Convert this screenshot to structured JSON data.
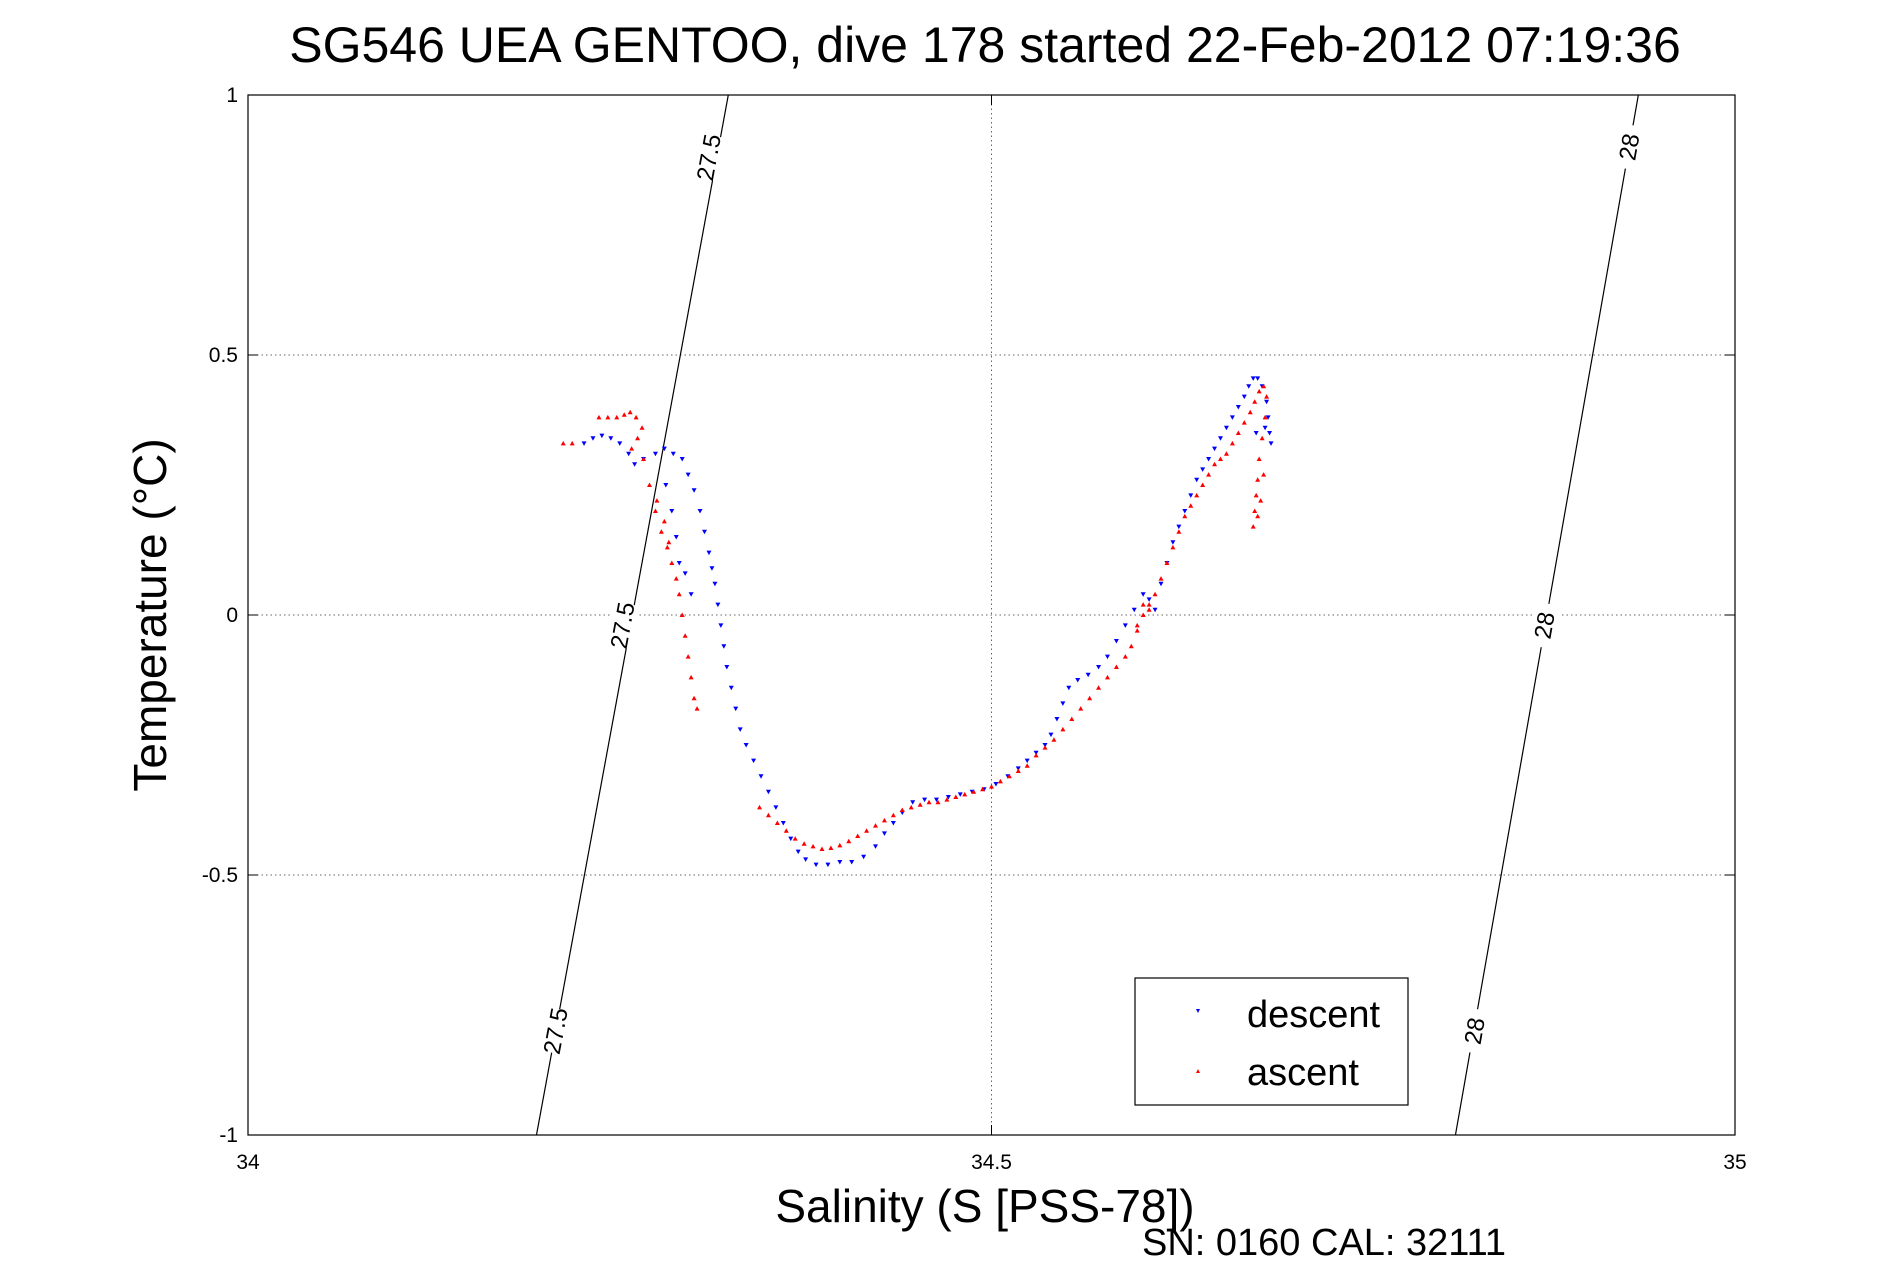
{
  "chart_data": {
    "type": "scatter",
    "title": "SG546 UEA GENTOO, dive 178 started 22-Feb-2012 07:19:36",
    "xlabel": "Salinity (S [PSS-78])",
    "ylabel": "Temperature (°C)",
    "xlim": [
      34,
      35
    ],
    "ylim": [
      -1,
      1
    ],
    "xticks": [
      34,
      34.5,
      35
    ],
    "yticks": [
      -1,
      -0.5,
      0,
      0.5,
      1
    ],
    "x_tick_labels": [
      "34",
      "34.5",
      "35"
    ],
    "y_tick_labels": [
      "-1",
      "-0.5",
      "0",
      "0.5",
      "1"
    ],
    "grid": true,
    "legend_position": "bottom-right",
    "density_contours": [
      {
        "label": "27.5",
        "points": [
          [
            34.194,
            -1
          ],
          [
            34.323,
            1
          ]
        ],
        "label_positions": [
          [
            34.207,
            -0.8
          ],
          [
            34.252,
            -0.02
          ],
          [
            34.31,
            0.88
          ]
        ]
      },
      {
        "label": "28",
        "points": [
          [
            34.812,
            -1
          ],
          [
            34.935,
            1
          ]
        ],
        "label_positions": [
          [
            34.825,
            -0.8
          ],
          [
            34.872,
            -0.02
          ],
          [
            34.929,
            0.9
          ]
        ]
      }
    ],
    "series": [
      {
        "name": "descent",
        "color": "#0000ff",
        "marker": "triangle-down",
        "points": [
          [
            34.226,
            0.33
          ],
          [
            34.232,
            0.34
          ],
          [
            34.238,
            0.345
          ],
          [
            34.244,
            0.34
          ],
          [
            34.25,
            0.33
          ],
          [
            34.256,
            0.31
          ],
          [
            34.26,
            0.29
          ],
          [
            34.266,
            0.3
          ],
          [
            34.274,
            0.31
          ],
          [
            34.28,
            0.32
          ],
          [
            34.286,
            0.31
          ],
          [
            34.292,
            0.3
          ],
          [
            34.296,
            0.27
          ],
          [
            34.3,
            0.24
          ],
          [
            34.304,
            0.2
          ],
          [
            34.307,
            0.16
          ],
          [
            34.31,
            0.12
          ],
          [
            34.312,
            0.09
          ],
          [
            34.314,
            0.06
          ],
          [
            34.316,
            0.02
          ],
          [
            34.318,
            -0.02
          ],
          [
            34.32,
            -0.06
          ],
          [
            34.322,
            -0.1
          ],
          [
            34.325,
            -0.14
          ],
          [
            34.328,
            -0.18
          ],
          [
            34.331,
            -0.22
          ],
          [
            34.335,
            -0.25
          ],
          [
            34.34,
            -0.28
          ],
          [
            34.345,
            -0.31
          ],
          [
            34.35,
            -0.34
          ],
          [
            34.355,
            -0.37
          ],
          [
            34.36,
            -0.4
          ],
          [
            34.365,
            -0.43
          ],
          [
            34.37,
            -0.455
          ],
          [
            34.375,
            -0.47
          ],
          [
            34.382,
            -0.48
          ],
          [
            34.39,
            -0.48
          ],
          [
            34.398,
            -0.475
          ],
          [
            34.406,
            -0.475
          ],
          [
            34.414,
            -0.465
          ],
          [
            34.422,
            -0.445
          ],
          [
            34.428,
            -0.42
          ],
          [
            34.434,
            -0.4
          ],
          [
            34.44,
            -0.38
          ],
          [
            34.447,
            -0.36
          ],
          [
            34.455,
            -0.355
          ],
          [
            34.463,
            -0.355
          ],
          [
            34.471,
            -0.35
          ],
          [
            34.479,
            -0.345
          ],
          [
            34.487,
            -0.34
          ],
          [
            34.495,
            -0.335
          ],
          [
            34.503,
            -0.325
          ],
          [
            34.511,
            -0.31
          ],
          [
            34.518,
            -0.295
          ],
          [
            34.524,
            -0.28
          ],
          [
            34.53,
            -0.265
          ],
          [
            34.536,
            -0.25
          ],
          [
            34.54,
            -0.23
          ],
          [
            34.544,
            -0.2
          ],
          [
            34.548,
            -0.17
          ],
          [
            34.552,
            -0.14
          ],
          [
            34.558,
            -0.125
          ],
          [
            34.565,
            -0.115
          ],
          [
            34.572,
            -0.1
          ],
          [
            34.578,
            -0.08
          ],
          [
            34.584,
            -0.05
          ],
          [
            34.59,
            -0.02
          ],
          [
            34.596,
            0.01
          ],
          [
            34.602,
            0.04
          ],
          [
            34.606,
            0.03
          ],
          [
            34.61,
            0.01
          ],
          [
            34.614,
            0.06
          ],
          [
            34.618,
            0.1
          ],
          [
            34.622,
            0.14
          ],
          [
            34.626,
            0.17
          ],
          [
            34.63,
            0.2
          ],
          [
            34.634,
            0.23
          ],
          [
            34.638,
            0.26
          ],
          [
            34.642,
            0.28
          ],
          [
            34.646,
            0.3
          ],
          [
            34.65,
            0.32
          ],
          [
            34.654,
            0.34
          ],
          [
            34.658,
            0.36
          ],
          [
            34.662,
            0.38
          ],
          [
            34.666,
            0.4
          ],
          [
            34.67,
            0.42
          ],
          [
            34.673,
            0.44
          ],
          [
            34.676,
            0.455
          ],
          [
            34.679,
            0.455
          ],
          [
            34.682,
            0.44
          ],
          [
            34.685,
            0.41
          ],
          [
            34.686,
            0.38
          ],
          [
            34.687,
            0.35
          ],
          [
            34.688,
            0.33
          ],
          [
            34.684,
            0.36
          ],
          [
            34.678,
            0.35
          ],
          [
            34.281,
            0.25
          ],
          [
            34.285,
            0.2
          ],
          [
            34.288,
            0.15
          ],
          [
            34.29,
            0.1
          ],
          [
            34.294,
            0.08
          ],
          [
            34.298,
            0.04
          ]
        ]
      },
      {
        "name": "ascent",
        "color": "#ff0000",
        "marker": "triangle-up",
        "points": [
          [
            34.212,
            0.33
          ],
          [
            34.218,
            0.33
          ],
          [
            34.236,
            0.38
          ],
          [
            34.242,
            0.38
          ],
          [
            34.248,
            0.38
          ],
          [
            34.253,
            0.385
          ],
          [
            34.257,
            0.39
          ],
          [
            34.261,
            0.38
          ],
          [
            34.265,
            0.36
          ],
          [
            34.262,
            0.34
          ],
          [
            34.258,
            0.32
          ],
          [
            34.266,
            0.3
          ],
          [
            34.27,
            0.25
          ],
          [
            34.274,
            0.2
          ],
          [
            34.278,
            0.16
          ],
          [
            34.282,
            0.13
          ],
          [
            34.285,
            0.1
          ],
          [
            34.288,
            0.07
          ],
          [
            34.29,
            0.04
          ],
          [
            34.292,
            0.0
          ],
          [
            34.294,
            -0.04
          ],
          [
            34.296,
            -0.08
          ],
          [
            34.298,
            -0.12
          ],
          [
            34.3,
            -0.16
          ],
          [
            34.302,
            -0.18
          ],
          [
            34.275,
            0.22
          ],
          [
            34.28,
            0.18
          ],
          [
            34.283,
            0.14
          ],
          [
            34.344,
            -0.37
          ],
          [
            34.35,
            -0.385
          ],
          [
            34.356,
            -0.4
          ],
          [
            34.362,
            -0.415
          ],
          [
            34.368,
            -0.43
          ],
          [
            34.374,
            -0.44
          ],
          [
            34.38,
            -0.445
          ],
          [
            34.386,
            -0.45
          ],
          [
            34.392,
            -0.448
          ],
          [
            34.398,
            -0.443
          ],
          [
            34.404,
            -0.435
          ],
          [
            34.41,
            -0.425
          ],
          [
            34.416,
            -0.415
          ],
          [
            34.422,
            -0.405
          ],
          [
            34.428,
            -0.395
          ],
          [
            34.434,
            -0.385
          ],
          [
            34.44,
            -0.375
          ],
          [
            34.446,
            -0.37
          ],
          [
            34.452,
            -0.365
          ],
          [
            34.458,
            -0.36
          ],
          [
            34.464,
            -0.36
          ],
          [
            34.47,
            -0.355
          ],
          [
            34.476,
            -0.35
          ],
          [
            34.482,
            -0.345
          ],
          [
            34.488,
            -0.34
          ],
          [
            34.494,
            -0.335
          ],
          [
            34.5,
            -0.33
          ],
          [
            34.506,
            -0.32
          ],
          [
            34.512,
            -0.31
          ],
          [
            34.518,
            -0.3
          ],
          [
            34.524,
            -0.29
          ],
          [
            34.53,
            -0.27
          ],
          [
            34.536,
            -0.255
          ],
          [
            34.542,
            -0.24
          ],
          [
            34.548,
            -0.22
          ],
          [
            34.554,
            -0.2
          ],
          [
            34.56,
            -0.18
          ],
          [
            34.566,
            -0.16
          ],
          [
            34.572,
            -0.14
          ],
          [
            34.578,
            -0.12
          ],
          [
            34.584,
            -0.1
          ],
          [
            34.59,
            -0.08
          ],
          [
            34.594,
            -0.06
          ],
          [
            34.598,
            -0.03
          ],
          [
            34.602,
            0.0
          ],
          [
            34.606,
            0.02
          ],
          [
            34.61,
            0.04
          ],
          [
            34.614,
            0.07
          ],
          [
            34.618,
            0.1
          ],
          [
            34.622,
            0.13
          ],
          [
            34.626,
            0.16
          ],
          [
            34.63,
            0.19
          ],
          [
            34.634,
            0.21
          ],
          [
            34.638,
            0.23
          ],
          [
            34.642,
            0.25
          ],
          [
            34.646,
            0.27
          ],
          [
            34.65,
            0.29
          ],
          [
            34.654,
            0.3
          ],
          [
            34.658,
            0.31
          ],
          [
            34.662,
            0.33
          ],
          [
            34.666,
            0.35
          ],
          [
            34.67,
            0.37
          ],
          [
            34.674,
            0.39
          ],
          [
            34.677,
            0.41
          ],
          [
            34.68,
            0.43
          ],
          [
            34.683,
            0.44
          ],
          [
            34.685,
            0.42
          ],
          [
            34.684,
            0.38
          ],
          [
            34.682,
            0.34
          ],
          [
            34.68,
            0.3
          ],
          [
            34.679,
            0.26
          ],
          [
            34.678,
            0.23
          ],
          [
            34.677,
            0.2
          ],
          [
            34.676,
            0.17
          ],
          [
            34.679,
            0.19
          ],
          [
            34.681,
            0.22
          ],
          [
            34.683,
            0.27
          ],
          [
            34.598,
            -0.02
          ],
          [
            34.602,
            0.02
          ],
          [
            34.606,
            0.01
          ]
        ]
      }
    ]
  },
  "figure": {
    "footer": "SN: 0160  CAL: 32111"
  },
  "colors": {
    "descent": "#0000ff",
    "ascent": "#ff0000",
    "grid": "#666666",
    "contour": "#000000"
  }
}
